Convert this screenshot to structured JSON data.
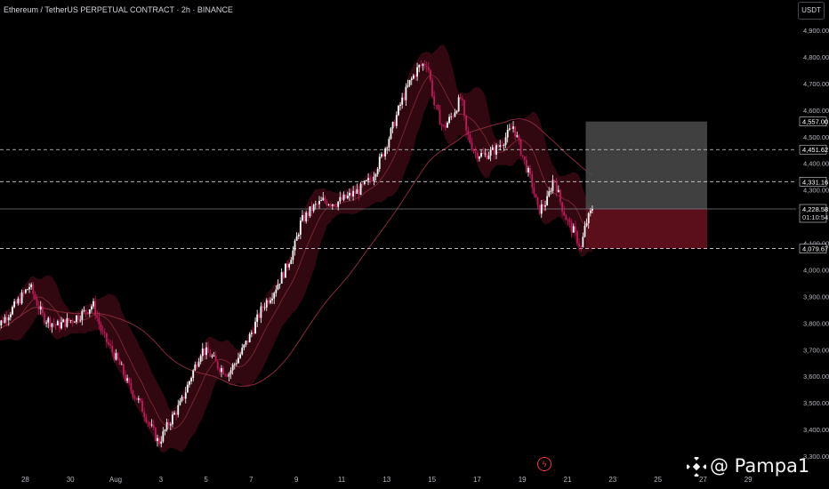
{
  "header": {
    "title": "Ethereum / TetherUS PERPETUAL CONTRACT · 2h · BINANCE"
  },
  "currency_button": "USDT",
  "watermark": {
    "text": "@ Pampa1"
  },
  "colors": {
    "up": "#ffffff",
    "down": "#c2185b",
    "band": "#5a0e1c",
    "loss": "#5b0f1b",
    "profit": "#4b4b4b",
    "ma": "#8a2a3a"
  },
  "chart_data": {
    "type": "candlestick",
    "title": "Ethereum / TetherUS PERPETUAL CONTRACT · 2h · BINANCE",
    "ylim": [
      3300,
      4960
    ],
    "y_ticks": [
      "4,900.00",
      "4,800.00",
      "4,700.00",
      "4,600.00",
      "4,500.00",
      "4,400.00",
      "4,300.00",
      "4,100.00",
      "4,000.00",
      "3,900.00",
      "3,800.00",
      "3,700.00",
      "3,600.00",
      "3,500.00",
      "3,400.00",
      "3,300.00"
    ],
    "x_labels": [
      "28",
      "30",
      "Aug",
      "3",
      "5",
      "7",
      "9",
      "11",
      "13",
      "15",
      "17",
      "19",
      "21",
      "23",
      "25",
      "27",
      "29"
    ],
    "x_label_days": [
      -4,
      -2,
      0,
      2,
      4,
      6,
      8,
      10,
      12,
      14,
      16,
      18,
      20,
      22,
      24,
      26,
      28
    ],
    "close_path": [
      [
        -5.4,
        3770
      ],
      [
        -4.5,
        3860
      ],
      [
        -3.8,
        3940
      ],
      [
        -3.2,
        3820
      ],
      [
        -2.6,
        3790
      ],
      [
        -2.0,
        3810
      ],
      [
        -1.4,
        3840
      ],
      [
        -1.0,
        3870
      ],
      [
        -0.6,
        3760
      ],
      [
        -0.2,
        3700
      ],
      [
        0.2,
        3640
      ],
      [
        0.6,
        3560
      ],
      [
        1.0,
        3510
      ],
      [
        1.5,
        3420
      ],
      [
        1.9,
        3350
      ],
      [
        2.4,
        3430
      ],
      [
        2.9,
        3500
      ],
      [
        3.3,
        3590
      ],
      [
        3.8,
        3700
      ],
      [
        4.2,
        3680
      ],
      [
        4.5,
        3640
      ],
      [
        5.0,
        3610
      ],
      [
        5.5,
        3680
      ],
      [
        6.0,
        3760
      ],
      [
        6.5,
        3860
      ],
      [
        7.0,
        3920
      ],
      [
        7.5,
        4000
      ],
      [
        7.9,
        4080
      ],
      [
        8.2,
        4180
      ],
      [
        8.7,
        4230
      ],
      [
        9.2,
        4260
      ],
      [
        9.7,
        4250
      ],
      [
        10.2,
        4270
      ],
      [
        10.8,
        4300
      ],
      [
        11.3,
        4340
      ],
      [
        11.8,
        4430
      ],
      [
        12.2,
        4520
      ],
      [
        12.6,
        4620
      ],
      [
        13.0,
        4700
      ],
      [
        13.4,
        4760
      ],
      [
        13.8,
        4780
      ],
      [
        14.1,
        4620
      ],
      [
        14.5,
        4530
      ],
      [
        14.9,
        4580
      ],
      [
        15.3,
        4650
      ],
      [
        15.5,
        4520
      ],
      [
        15.9,
        4440
      ],
      [
        16.3,
        4430
      ],
      [
        16.8,
        4450
      ],
      [
        17.2,
        4490
      ],
      [
        17.6,
        4540
      ],
      [
        18.0,
        4430
      ],
      [
        18.4,
        4330
      ],
      [
        18.7,
        4220
      ],
      [
        19.1,
        4260
      ],
      [
        19.4,
        4350
      ],
      [
        19.7,
        4250
      ],
      [
        20.0,
        4180
      ],
      [
        20.3,
        4140
      ],
      [
        20.6,
        4080
      ],
      [
        20.8,
        4170
      ],
      [
        21.1,
        4228.58
      ]
    ],
    "band_half_width": 45,
    "position": {
      "type": "long",
      "start_day": 21.2,
      "end_day": 29.2,
      "take_profit": 4557.0,
      "entry": 4228.58,
      "stop_loss": 4079.67
    },
    "level_labels": [
      {
        "text": "4,557.00",
        "value": 4557.0
      },
      {
        "text": "4,451.62",
        "value": 4451.62
      },
      {
        "text": "4,331.16",
        "value": 4331.16
      },
      {
        "text": "4,228.58",
        "value": 4228.58
      },
      {
        "text": "4,079.67",
        "value": 4079.67
      }
    ],
    "dashed_levels": [
      4451.62,
      4331.16,
      4079.67
    ],
    "last_price": 4228.58,
    "countdown": "01:10:54"
  }
}
